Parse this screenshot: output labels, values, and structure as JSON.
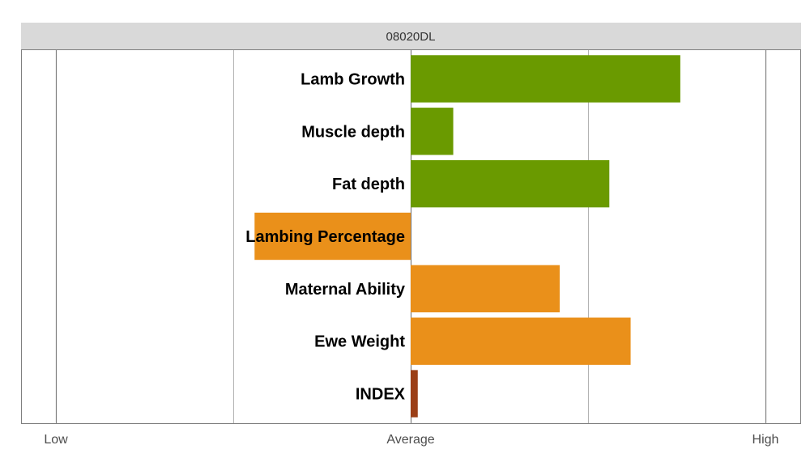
{
  "chart_data": {
    "type": "bar",
    "orientation": "horizontal",
    "title": "08020DL",
    "categories": [
      "Lamb Growth",
      "Muscle depth",
      "Fat depth",
      "Lambing Percentage",
      "Maternal Ability",
      "Ewe Weight",
      "INDEX"
    ],
    "values": [
      0.76,
      0.12,
      0.56,
      -0.44,
      0.42,
      0.62,
      0.02
    ],
    "bar_colors": [
      "#6a9a00",
      "#6a9a00",
      "#6a9a00",
      "#ea901a",
      "#ea901a",
      "#ea901a",
      "#9b3f17"
    ],
    "xlim": [
      -1,
      1
    ],
    "x_ticks": [
      {
        "value": -1,
        "label": "Low"
      },
      {
        "value": 0,
        "label": "Average"
      },
      {
        "value": 1,
        "label": "High"
      }
    ],
    "x_minor_gridlines": [
      -0.5,
      0.5
    ],
    "grid": true,
    "legend": "none",
    "colors": {
      "strip_background": "#d9d9d9",
      "major_grid": "#7f7f7f",
      "minor_grid": "#b3b3b3",
      "panel_border": "#7f7f7f"
    }
  }
}
